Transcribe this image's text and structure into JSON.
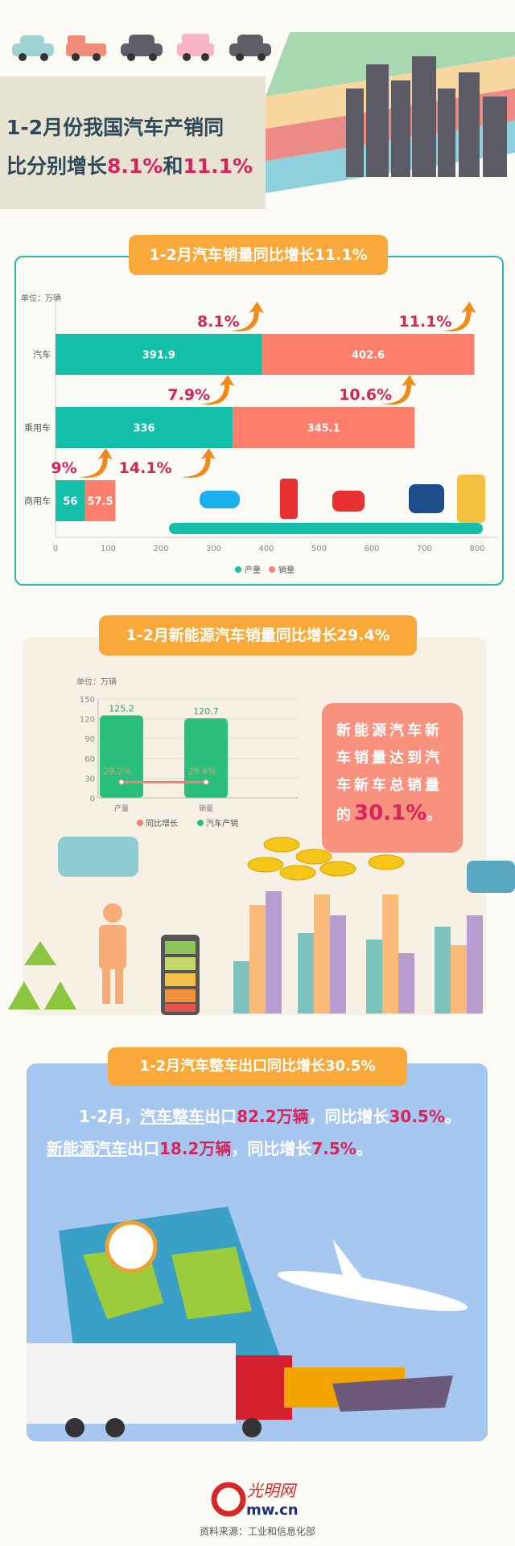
{
  "header": {
    "title_line1": "1-2月份我国汽车产销同",
    "title_line2_prefix": "比分别增长",
    "title_val1": "8.1%",
    "title_and": "和",
    "title_val2": "11.1%"
  },
  "section1": {
    "title": "1-2月汽车销量同比增长11.1%"
  },
  "section2": {
    "title": "1-2月新能源汽车销量同比增长29.4%",
    "callout_text": "新能源汽车新车销量达到汽车新车总销量的",
    "callout_value": "30.1%",
    "callout_end": "。"
  },
  "section3": {
    "title": "1-2月汽车整车出口同比增长30.5%",
    "p1": "1-2月，",
    "u1": "汽车整车",
    "t1": "出口",
    "v1": "82.2万辆",
    "t2": "，同比增长",
    "v2": "30.5%",
    "t3": "。",
    "u2": "新能源汽车",
    "t4": "出口",
    "v3": "18.2万辆",
    "t5": "，同比增长",
    "v4": "7.5%",
    "t6": "。"
  },
  "footer": {
    "logo": "光明网 gmw.cn",
    "source": "资料来源：工业和信息化部"
  },
  "colors": {
    "production": "#13bfa9",
    "sales": "#fd7f6b",
    "accent_pill": "#f9a93a",
    "highlight": "#d6245c",
    "nev_bar": "#2bbf7c",
    "growth_line": "#f08070"
  },
  "chart_data": [
    {
      "type": "bar",
      "orientation": "horizontal",
      "stacked": true,
      "unit_label": "单位：万辆",
      "categories": [
        "汽车",
        "乘用车",
        "商用车"
      ],
      "series": [
        {
          "name": "产量",
          "values": [
            391.9,
            336,
            56
          ],
          "growth": [
            "8.1%",
            "7.9%",
            "9%"
          ]
        },
        {
          "name": "销量",
          "values": [
            402.6,
            345.1,
            57.5
          ],
          "growth": [
            "11.1%",
            "10.6%",
            "14.1%"
          ]
        }
      ],
      "xlim": [
        0,
        800
      ],
      "xticks": [
        0,
        100,
        200,
        300,
        400,
        500,
        600,
        700,
        800
      ],
      "legend": "bottom"
    },
    {
      "type": "bar",
      "unit_label": "单位：万辆",
      "categories": [
        "产量",
        "销量"
      ],
      "series": [
        {
          "name": "汽车产销",
          "values": [
            125.2,
            120.7
          ]
        },
        {
          "name": "同比增长",
          "type": "line",
          "values": [
            28.2,
            29.4
          ],
          "labels": [
            "28.2%",
            "29.4%"
          ]
        }
      ],
      "ylim": [
        0,
        150
      ],
      "yticks": [
        0,
        30,
        60,
        90,
        120,
        150
      ],
      "grid": true,
      "legend": "bottom"
    }
  ]
}
